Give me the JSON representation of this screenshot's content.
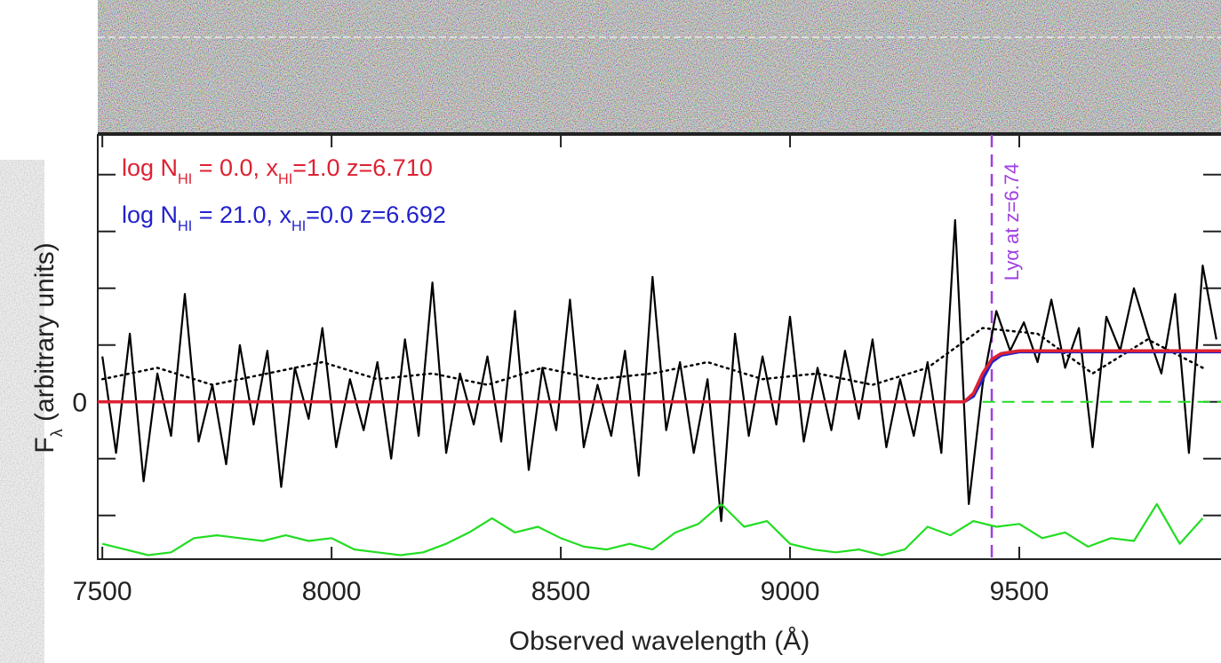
{
  "chart_data": {
    "type": "line",
    "x_label": "Observed wavelength (Å)",
    "y_label": [
      "F",
      "λ",
      " (arbitrary units)"
    ],
    "xlim": [
      7490,
      9940
    ],
    "ylim": [
      -2.77,
      4.7
    ],
    "xticks": [
      7500,
      8000,
      8500,
      9000,
      9500
    ],
    "yticks": [
      0
    ],
    "y_minor_ticks": [
      -2,
      -1,
      1,
      2,
      3,
      4
    ],
    "series": [
      {
        "color": "#000000",
        "style": "solid",
        "x": [
          7500,
          7530,
          7560,
          7590,
          7620,
          7650,
          7680,
          7710,
          7740,
          7770,
          7800,
          7830,
          7860,
          7890,
          7920,
          7950,
          7980,
          8010,
          8040,
          8070,
          8100,
          8130,
          8160,
          8190,
          8220,
          8250,
          8280,
          8310,
          8340,
          8370,
          8400,
          8430,
          8460,
          8490,
          8520,
          8550,
          8580,
          8610,
          8640,
          8670,
          8700,
          8730,
          8760,
          8790,
          8820,
          8850,
          8880,
          8910,
          8940,
          8970,
          9000,
          9030,
          9060,
          9090,
          9120,
          9150,
          9180,
          9210,
          9240,
          9270,
          9300,
          9330,
          9360,
          9390,
          9420,
          9450,
          9480,
          9510,
          9540,
          9570,
          9600,
          9630,
          9660,
          9690,
          9720,
          9750,
          9780,
          9810,
          9840,
          9870,
          9900,
          9930
        ],
        "values": [
          0.8,
          -0.9,
          1.2,
          -1.4,
          0.5,
          -0.6,
          1.9,
          -0.7,
          0.3,
          -1.1,
          1.0,
          -0.4,
          0.9,
          -1.5,
          0.6,
          -0.3,
          1.3,
          -0.8,
          0.4,
          -0.5,
          0.7,
          -1.0,
          1.1,
          -0.6,
          2.1,
          -0.9,
          0.5,
          -0.4,
          0.8,
          -0.7,
          1.6,
          -1.2,
          0.6,
          -0.5,
          1.8,
          -0.8,
          0.3,
          -0.6,
          0.9,
          -1.3,
          2.2,
          -0.5,
          0.7,
          -0.9,
          0.4,
          -2.1,
          1.2,
          -0.6,
          0.8,
          -0.4,
          1.5,
          -0.7,
          0.6,
          -0.5,
          0.9,
          -0.3,
          1.1,
          -0.8,
          0.4,
          -0.6,
          0.7,
          -0.9,
          3.2,
          -1.8,
          0.3,
          1.6,
          0.9,
          1.4,
          0.7,
          1.8,
          0.6,
          1.3,
          -0.8,
          1.5,
          0.9,
          2.0,
          1.2,
          0.5,
          1.9,
          -0.9,
          2.4,
          1.1
        ]
      },
      {
        "color": "#000000",
        "style": "dotted",
        "x": [
          7500,
          7620,
          7740,
          7860,
          7980,
          8100,
          8220,
          8340,
          8460,
          8580,
          8700,
          8820,
          8940,
          9060,
          9180,
          9300,
          9420,
          9540,
          9660,
          9780,
          9900
        ],
        "values": [
          0.4,
          0.6,
          0.3,
          0.5,
          0.7,
          0.4,
          0.5,
          0.3,
          0.6,
          0.4,
          0.5,
          0.7,
          0.4,
          0.5,
          0.3,
          0.6,
          1.3,
          1.2,
          0.5,
          1.1,
          0.6
        ]
      },
      {
        "color": "#22dd22",
        "style": "solid",
        "x": [
          7500,
          7550,
          7600,
          7650,
          7700,
          7750,
          7800,
          7850,
          7900,
          7950,
          8000,
          8050,
          8100,
          8150,
          8200,
          8250,
          8300,
          8350,
          8400,
          8450,
          8500,
          8550,
          8600,
          8650,
          8700,
          8750,
          8800,
          8850,
          8900,
          8950,
          9000,
          9050,
          9100,
          9150,
          9200,
          9250,
          9300,
          9350,
          9400,
          9450,
          9500,
          9550,
          9600,
          9650,
          9700,
          9750,
          9800,
          9850,
          9900
        ],
        "values": [
          -2.5,
          -2.6,
          -2.7,
          -2.65,
          -2.4,
          -2.35,
          -2.4,
          -2.45,
          -2.35,
          -2.45,
          -2.4,
          -2.6,
          -2.65,
          -2.7,
          -2.65,
          -2.5,
          -2.3,
          -2.05,
          -2.3,
          -2.2,
          -2.4,
          -2.55,
          -2.6,
          -2.5,
          -2.6,
          -2.3,
          -2.15,
          -1.8,
          -2.2,
          -2.1,
          -2.5,
          -2.6,
          -2.65,
          -2.6,
          -2.7,
          -2.6,
          -2.2,
          -2.35,
          -2.1,
          -2.2,
          -2.15,
          -2.4,
          -2.3,
          -2.55,
          -2.4,
          -2.45,
          -1.8,
          -2.5,
          -2.05
        ]
      },
      {
        "color": "#22dd22",
        "style": "dashed",
        "x": [
          9420,
          9940
        ],
        "values": [
          0,
          0
        ]
      },
      {
        "name": [
          "log N",
          "HI",
          " = 21.0, x",
          "HI",
          "=0.0  z=6.692"
        ],
        "color": "#2222cc",
        "style": "model",
        "x": [
          7490,
          9380,
          9400,
          9420,
          9440,
          9460,
          9500,
          9940
        ],
        "values": [
          0,
          0,
          0.1,
          0.4,
          0.7,
          0.82,
          0.88,
          0.88
        ]
      },
      {
        "name": [
          "log N",
          "HI",
          " =  0.0, x",
          "HI",
          "=1.0  z=6.710"
        ],
        "color": "#dd2233",
        "style": "model",
        "x": [
          7490,
          9380,
          9400,
          9420,
          9440,
          9460,
          9500,
          9940
        ],
        "values": [
          0,
          0,
          0.15,
          0.5,
          0.75,
          0.85,
          0.9,
          0.9
        ]
      }
    ],
    "legend_order": [
      5,
      4
    ],
    "annotation": {
      "text": "Lyα at z=6.74",
      "x": 9440,
      "color": "#a040e0"
    }
  }
}
